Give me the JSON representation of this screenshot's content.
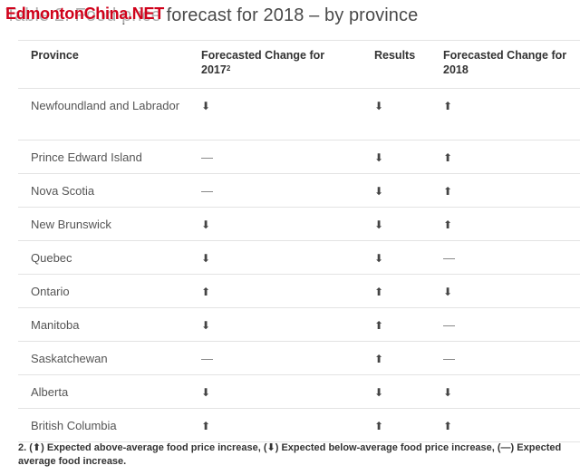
{
  "watermark": "EdmontonChina.NET",
  "title": "Table 2: Food price forecast for 2018 – by province",
  "table": {
    "headers": [
      "Province",
      "Forecasted Change for 2017",
      "Results",
      "Forecasted Change for 2018"
    ],
    "header_footnote_marker": "2",
    "rows": [
      {
        "province": "Newfoundland and Labrador",
        "change_2017": "⬇",
        "results": "⬇",
        "change_2018": "⬆"
      },
      {
        "province": "Prince Edward Island",
        "change_2017": "—",
        "results": "⬇",
        "change_2018": "⬆"
      },
      {
        "province": "Nova Scotia",
        "change_2017": "—",
        "results": "⬇",
        "change_2018": "⬆"
      },
      {
        "province": "New Brunswick",
        "change_2017": "⬇",
        "results": "⬇",
        "change_2018": "⬆"
      },
      {
        "province": "Quebec",
        "change_2017": "⬇",
        "results": "⬇",
        "change_2018": "—"
      },
      {
        "province": "Ontario",
        "change_2017": "⬆",
        "results": "⬆",
        "change_2018": "⬇"
      },
      {
        "province": "Manitoba",
        "change_2017": "⬇",
        "results": "⬆",
        "change_2018": "—"
      },
      {
        "province": "Saskatchewan",
        "change_2017": "—",
        "results": "⬆",
        "change_2018": "—"
      },
      {
        "province": "Alberta",
        "change_2017": "⬇",
        "results": "⬇",
        "change_2018": "⬇"
      },
      {
        "province": "British Columbia",
        "change_2017": "⬆",
        "results": "⬆",
        "change_2018": "⬆"
      }
    ]
  },
  "footnote": "2. (⬆) Expected above-average food price increase, (⬇) Expected below-average food price increase, (—) Expected average food increase."
}
